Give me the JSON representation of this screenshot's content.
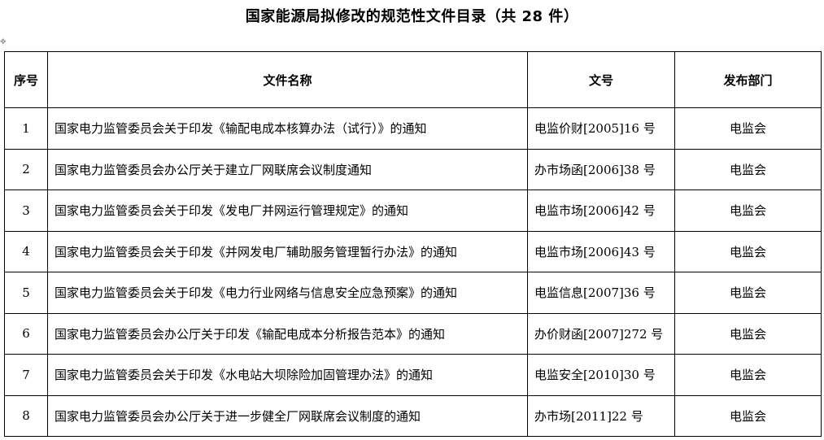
{
  "title": "国家能源局拟修改的规范性文件目录（共 28 件）",
  "headers": [
    "序号",
    "文件名称",
    "文号",
    "发布部门"
  ],
  "rows": [
    {
      "no": "1",
      "name": "国家电力监管委员会关于印发《输配电成本核算办法（试行）》的通知",
      "doc": "电监价财[2005]16 号",
      "dept": "电监会"
    },
    {
      "no": "2",
      "name": "国家电力监管委员会办公厅关于建立厂网联席会议制度通知",
      "doc": "办市场函[2006]38 号",
      "dept": "电监会"
    },
    {
      "no": "3",
      "name": "国家电力监管委员会关于印发《发电厂并网运行管理规定》的通知",
      "doc": "电监市场[2006]42 号",
      "dept": "电监会"
    },
    {
      "no": "4",
      "name": "国家电力监管委员会关于印发《并网发电厂辅助服务管理暂行办法》的通知",
      "doc": "电监市场[2006]43 号",
      "dept": "电监会"
    },
    {
      "no": "5",
      "name": "国家电力监管委员会关于印发《电力行业网络与信息安全应急预案》的通知",
      "doc": "电监信息[2007]36 号",
      "dept": "电监会"
    },
    {
      "no": "6",
      "name": "国家电力监管委员会办公厅关于印发《输配电成本分析报告范本》的通知",
      "doc": "办价财函[2007]272 号",
      "dept": "电监会"
    },
    {
      "no": "7",
      "name": "国家电力监管委员会关于印发《水电站大坝除险加固管理办法》的通知",
      "doc": "电监安全[2010]30 号",
      "dept": "电监会"
    },
    {
      "no": "8",
      "name": "国家电力监管委员会办公厅关于进一步健全厂网联席会议制度的通知",
      "doc": "办市场[2011]22 号",
      "dept": "电监会"
    }
  ]
}
